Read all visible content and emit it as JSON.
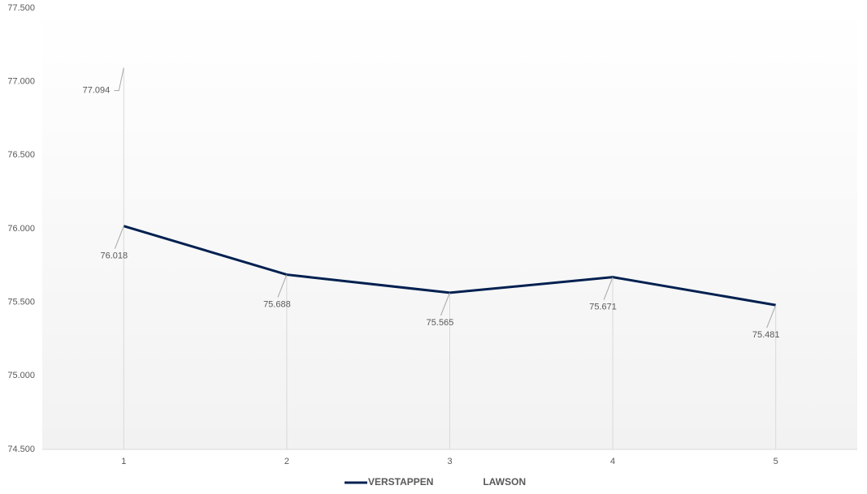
{
  "chart_data": {
    "type": "line",
    "categories": [
      "1",
      "2",
      "3",
      "4",
      "5"
    ],
    "series": [
      {
        "name": "VERSTAPPEN",
        "color": "#002050",
        "values": [
          76.018,
          75.688,
          75.565,
          75.671,
          75.481
        ]
      },
      {
        "name": "LAWSON",
        "color": "#ffffff",
        "values": [
          77.094,
          null,
          null,
          null,
          null
        ]
      }
    ],
    "ylim": [
      74.5,
      77.5
    ],
    "yticks": [
      {
        "value": 74.5,
        "label": "74.500"
      },
      {
        "value": 75,
        "label": "75.000"
      },
      {
        "value": 75.5,
        "label": "75.500"
      },
      {
        "value": 76,
        "label": "76.000"
      },
      {
        "value": 76.5,
        "label": "76.500"
      },
      {
        "value": 77,
        "label": "77.000"
      },
      {
        "value": 77.5,
        "label": "77.500"
      }
    ],
    "grid": false,
    "drop_lines": true,
    "legend": "bottom"
  }
}
